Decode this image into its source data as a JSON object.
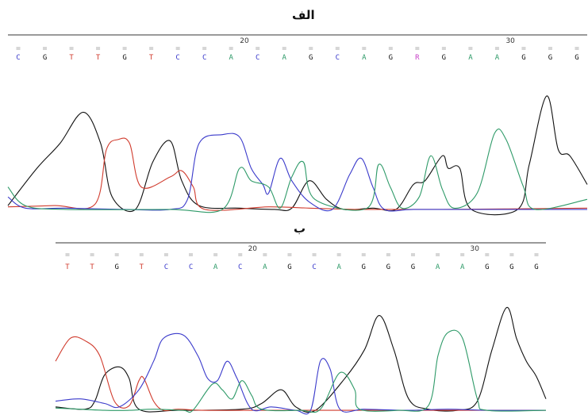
{
  "panels": {
    "top": {
      "label": "الف"
    },
    "bottom": {
      "label": "ب"
    }
  },
  "colors": {
    "A": "#2e9a68",
    "C": "#3a3acb",
    "G": "#111111",
    "T": "#d03a2c",
    "R": "#c640c6"
  },
  "chart_data": [
    {
      "type": "line",
      "subtype": "dna-sequencing-chromatogram",
      "title": "الف",
      "bases": [
        "C",
        "G",
        "T",
        "T",
        "G",
        "T",
        "C",
        "C",
        "A",
        "C",
        "A",
        "G",
        "C",
        "A",
        "G",
        "R",
        "G",
        "A",
        "A",
        "G",
        "G",
        "G"
      ],
      "position_markers": [
        {
          "after_index": 8,
          "label": "20"
        },
        {
          "after_index": 18,
          "label": "30"
        }
      ],
      "x_range": [
        0,
        100
      ],
      "ylim": [
        0,
        100
      ],
      "series": [
        {
          "name": "G",
          "points": [
            [
              0,
              5
            ],
            [
              5,
              35
            ],
            [
              9,
              55
            ],
            [
              13,
              80
            ],
            [
              16,
              55
            ],
            [
              18,
              12
            ],
            [
              22,
              2
            ],
            [
              25,
              40
            ],
            [
              28,
              57
            ],
            [
              30,
              25
            ],
            [
              33,
              5
            ],
            [
              40,
              3
            ],
            [
              46,
              2
            ],
            [
              49,
              3
            ],
            [
              52,
              25
            ],
            [
              55,
              10
            ],
            [
              58,
              2
            ],
            [
              63,
              3
            ],
            [
              67,
              2
            ],
            [
              70,
              22
            ],
            [
              72,
              25
            ],
            [
              75,
              45
            ],
            [
              76,
              35
            ],
            [
              78,
              35
            ],
            [
              80,
              2
            ],
            [
              88,
              2
            ],
            [
              90,
              38
            ],
            [
              93,
              93
            ],
            [
              95,
              50
            ],
            [
              97,
              45
            ],
            [
              100,
              22
            ]
          ]
        },
        {
          "name": "T",
          "points": [
            [
              0,
              4
            ],
            [
              8,
              5
            ],
            [
              15,
              6
            ],
            [
              17,
              50
            ],
            [
              19,
              58
            ],
            [
              21,
              55
            ],
            [
              23,
              20
            ],
            [
              28,
              28
            ],
            [
              30,
              33
            ],
            [
              32,
              20
            ],
            [
              34,
              2
            ],
            [
              45,
              4
            ],
            [
              52,
              3
            ],
            [
              60,
              2
            ],
            [
              75,
              2
            ],
            [
              100,
              3
            ]
          ]
        },
        {
          "name": "C",
          "points": [
            [
              0,
              12
            ],
            [
              3,
              3
            ],
            [
              10,
              3
            ],
            [
              20,
              2
            ],
            [
              28,
              2
            ],
            [
              31,
              10
            ],
            [
              33,
              55
            ],
            [
              37,
              62
            ],
            [
              40,
              60
            ],
            [
              42,
              35
            ],
            [
              44,
              22
            ],
            [
              45,
              15
            ],
            [
              47,
              43
            ],
            [
              49,
              25
            ],
            [
              52,
              8
            ],
            [
              56,
              2
            ],
            [
              59,
              30
            ],
            [
              61,
              43
            ],
            [
              63,
              20
            ],
            [
              65,
              2
            ],
            [
              70,
              2
            ],
            [
              80,
              2
            ],
            [
              100,
              2
            ]
          ]
        },
        {
          "name": "A",
          "points": [
            [
              0,
              20
            ],
            [
              3,
              5
            ],
            [
              10,
              2
            ],
            [
              28,
              2
            ],
            [
              37,
              2
            ],
            [
              40,
              35
            ],
            [
              42,
              25
            ],
            [
              45,
              20
            ],
            [
              47,
              3
            ],
            [
              49,
              28
            ],
            [
              51,
              40
            ],
            [
              53,
              10
            ],
            [
              62,
              3
            ],
            [
              64,
              38
            ],
            [
              66,
              20
            ],
            [
              68,
              3
            ],
            [
              71,
              12
            ],
            [
              73,
              45
            ],
            [
              75,
              18
            ],
            [
              77,
              3
            ],
            [
              81,
              15
            ],
            [
              84,
              63
            ],
            [
              86,
              58
            ],
            [
              89,
              20
            ],
            [
              91,
              2
            ],
            [
              100,
              10
            ]
          ]
        }
      ]
    },
    {
      "type": "line",
      "subtype": "dna-sequencing-chromatogram",
      "title": "ب",
      "bases": [
        "T",
        "T",
        "G",
        "T",
        "C",
        "C",
        "A",
        "C",
        "A",
        "G",
        "C",
        "A",
        "G",
        "G",
        "G",
        "A",
        "A",
        "G",
        "G",
        "G"
      ],
      "position_markers": [
        {
          "after_index": 7,
          "label": "20"
        },
        {
          "after_index": 16,
          "label": "30"
        }
      ],
      "x_range": [
        0,
        100
      ],
      "ylim": [
        0,
        100
      ],
      "series": [
        {
          "name": "G",
          "points": [
            [
              0,
              5
            ],
            [
              6,
              3
            ],
            [
              8,
              10
            ],
            [
              10,
              33
            ],
            [
              13,
              40
            ],
            [
              15,
              30
            ],
            [
              17,
              3
            ],
            [
              25,
              2
            ],
            [
              38,
              3
            ],
            [
              42,
              8
            ],
            [
              46,
              20
            ],
            [
              49,
              5
            ],
            [
              53,
              2
            ],
            [
              59,
              30
            ],
            [
              63,
              55
            ],
            [
              66,
              85
            ],
            [
              69,
              55
            ],
            [
              72,
              12
            ],
            [
              76,
              3
            ],
            [
              82,
              2
            ],
            [
              86,
              10
            ],
            [
              89,
              55
            ],
            [
              92,
              92
            ],
            [
              94,
              65
            ],
            [
              96,
              45
            ],
            [
              98,
              32
            ],
            [
              100,
              12
            ]
          ]
        },
        {
          "name": "T",
          "points": [
            [
              0,
              45
            ],
            [
              3,
              65
            ],
            [
              6,
              63
            ],
            [
              9,
              50
            ],
            [
              12,
              10
            ],
            [
              15,
              6
            ],
            [
              17,
              28
            ],
            [
              18,
              30
            ],
            [
              20,
              10
            ],
            [
              22,
              2
            ],
            [
              25,
              3
            ],
            [
              30,
              2
            ],
            [
              40,
              2
            ],
            [
              60,
              2
            ],
            [
              100,
              2
            ]
          ]
        },
        {
          "name": "C",
          "points": [
            [
              0,
              10
            ],
            [
              5,
              12
            ],
            [
              10,
              8
            ],
            [
              13,
              5
            ],
            [
              17,
              20
            ],
            [
              20,
              45
            ],
            [
              22,
              65
            ],
            [
              26,
              68
            ],
            [
              29,
              50
            ],
            [
              31,
              30
            ],
            [
              33,
              28
            ],
            [
              35,
              45
            ],
            [
              37,
              30
            ],
            [
              40,
              3
            ],
            [
              44,
              5
            ],
            [
              49,
              2
            ],
            [
              52,
              2
            ],
            [
              54,
              45
            ],
            [
              56,
              38
            ],
            [
              58,
              3
            ],
            [
              63,
              3
            ],
            [
              72,
              2
            ],
            [
              80,
              3
            ],
            [
              88,
              2
            ],
            [
              100,
              2
            ]
          ]
        },
        {
          "name": "A",
          "points": [
            [
              0,
              4
            ],
            [
              10,
              2
            ],
            [
              15,
              2
            ],
            [
              20,
              3
            ],
            [
              26,
              2
            ],
            [
              28,
              2
            ],
            [
              32,
              25
            ],
            [
              34,
              20
            ],
            [
              36,
              12
            ],
            [
              38,
              28
            ],
            [
              40,
              15
            ],
            [
              42,
              3
            ],
            [
              50,
              2
            ],
            [
              54,
              3
            ],
            [
              58,
              35
            ],
            [
              61,
              20
            ],
            [
              62,
              3
            ],
            [
              70,
              2
            ],
            [
              76,
              6
            ],
            [
              78,
              50
            ],
            [
              80,
              70
            ],
            [
              83,
              65
            ],
            [
              86,
              12
            ],
            [
              88,
              2
            ],
            [
              100,
              2
            ]
          ]
        }
      ]
    }
  ]
}
